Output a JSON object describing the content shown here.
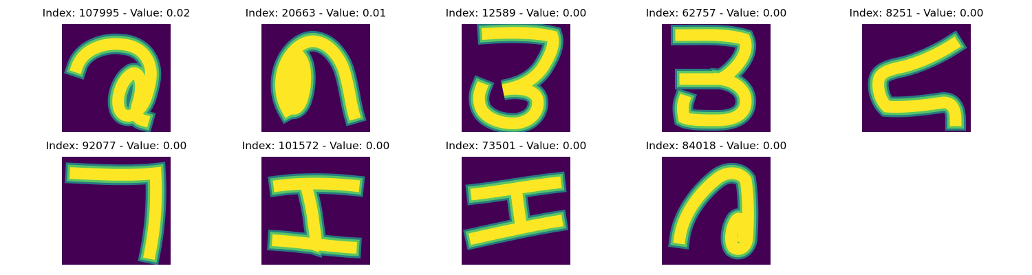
{
  "colors": {
    "background": "#440154",
    "stroke_outer": "#21918c",
    "stroke_mid": "#5ec962",
    "stroke_core": "#fde725"
  },
  "panels": [
    {
      "title": "Index: 107995 - Value: 0.02"
    },
    {
      "title": "Index: 20663 - Value: 0.01"
    },
    {
      "title": "Index: 12589 - Value: 0.00"
    },
    {
      "title": "Index: 62757 - Value: 0.00"
    },
    {
      "title": "Index: 8251 - Value: 0.00"
    },
    {
      "title": "Index: 92077 - Value: 0.00"
    },
    {
      "title": "Index: 101572 - Value: 0.00"
    },
    {
      "title": "Index: 73501 - Value: 0.00"
    },
    {
      "title": "Index: 84018 - Value: 0.00"
    }
  ]
}
